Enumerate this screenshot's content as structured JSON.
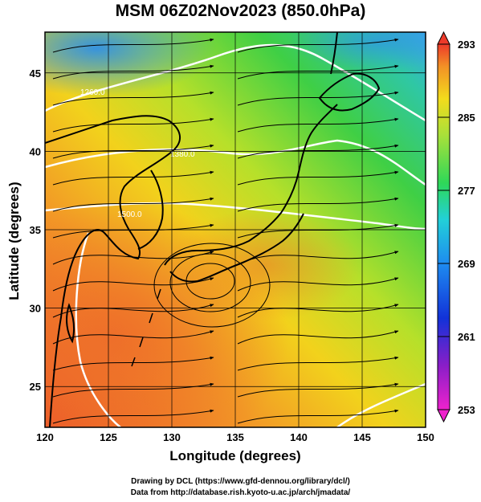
{
  "title": "MSM 06Z02Nov2023 (850.0hPa)",
  "xlabel": "Longitude (degrees)",
  "ylabel": "Latitude  (degrees)",
  "credit_line1": "Drawing by DCL (https://www.gfd-dennou.org/library/dcl/)",
  "credit_line2": "Data from http://database.rish.kyoto-u.ac.jp/arch/jmadata/",
  "map": {
    "x_ticks": [
      "120",
      "125",
      "130",
      "135",
      "140",
      "145",
      "150"
    ],
    "y_ticks": [
      "45",
      "40",
      "35",
      "30",
      "25"
    ],
    "lon_range": [
      120,
      150
    ],
    "lat_range": [
      22.4,
      47.6
    ],
    "colorbar_ticks": [
      "293",
      "285",
      "277",
      "269",
      "261",
      "253"
    ],
    "colorbar_range": [
      253,
      293
    ],
    "contour_labels": [
      "1260.0",
      "1380.0",
      "1500.0"
    ],
    "colors": {
      "warm": "#f06a2a",
      "mid": "#f2d51a",
      "cool": "#3fcf45",
      "cold": "#3aa8e8"
    }
  }
}
